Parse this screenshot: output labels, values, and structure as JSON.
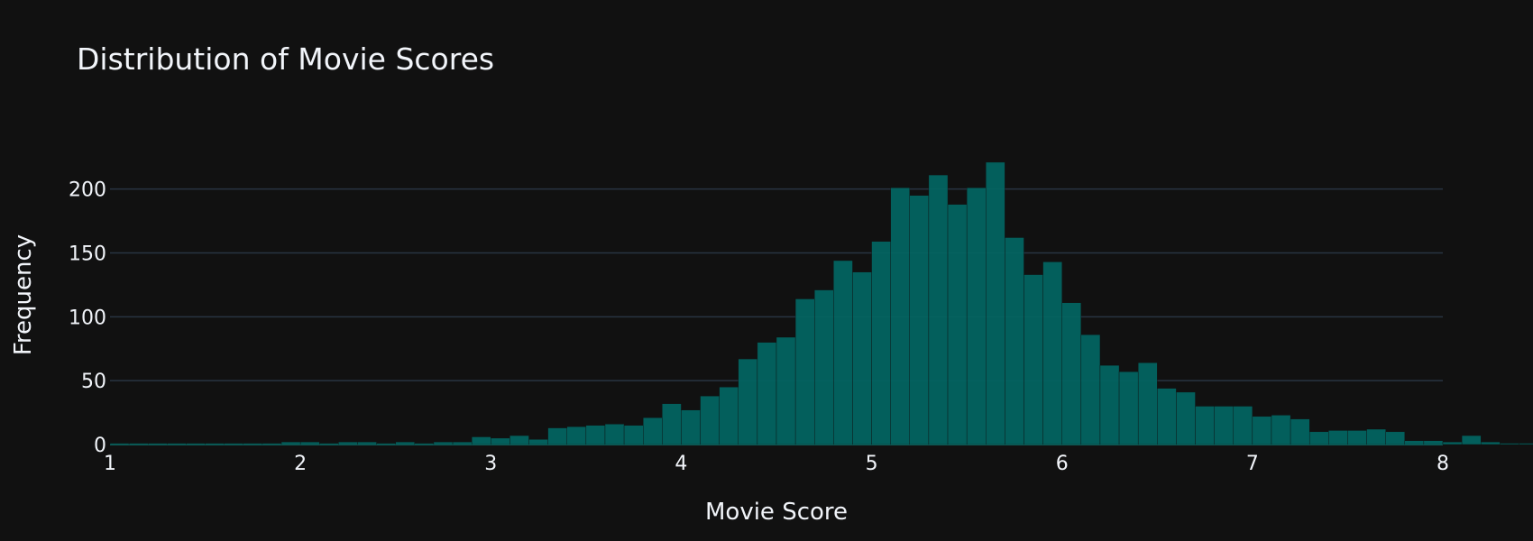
{
  "chart_data": {
    "type": "bar",
    "title": "Distribution of Movie Scores",
    "xlabel": "Movie Score",
    "ylabel": "Frequency",
    "xlim": [
      1,
      8
    ],
    "ylim": [
      0,
      228
    ],
    "xticks": [
      1,
      2,
      3,
      4,
      5,
      6,
      7,
      8
    ],
    "yticks": [
      0,
      50,
      100,
      150,
      200
    ],
    "grid": true,
    "legend": "none",
    "bar_color": "#036461",
    "bar_edge_color": "#0a8f8a",
    "background": "#111111",
    "grid_color": "#283442",
    "text_color": "#f2f5fa",
    "bin_width": 0.1,
    "bin_start": 1.0,
    "values": [
      1,
      1,
      1,
      1,
      1,
      1,
      1,
      1,
      1,
      2,
      2,
      1,
      2,
      2,
      1,
      2,
      1,
      2,
      2,
      6,
      5,
      7,
      4,
      13,
      14,
      15,
      16,
      15,
      21,
      32,
      27,
      38,
      45,
      67,
      80,
      84,
      114,
      121,
      144,
      135,
      159,
      201,
      195,
      211,
      188,
      201,
      221,
      162,
      133,
      143,
      111,
      86,
      62,
      57,
      64,
      44,
      41,
      30,
      30,
      30,
      22,
      23,
      20,
      10,
      11,
      11,
      12,
      10,
      3,
      3,
      2,
      7,
      2,
      1,
      1,
      3,
      1
    ]
  }
}
